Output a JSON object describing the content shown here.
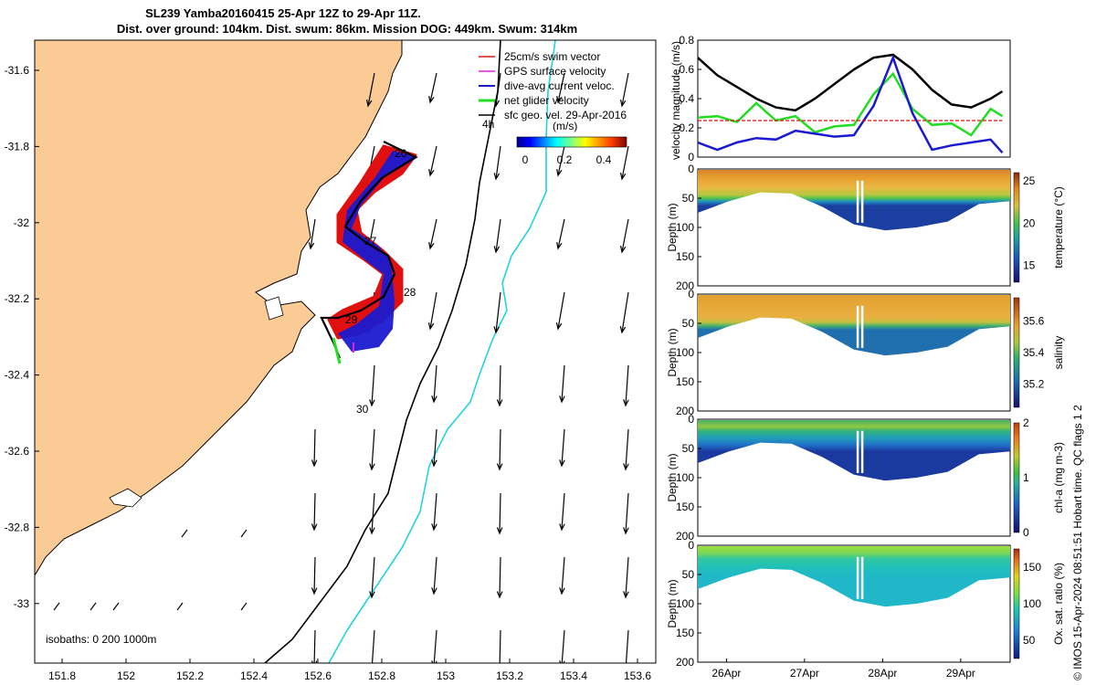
{
  "title": {
    "line1": "SL239 Yamba20160415 25-Apr 12Z to 29-Apr 11Z.",
    "line2": "Dist. over ground: 104km. Dist. swum: 86km. Mission DOG: 449km. Swum: 314km"
  },
  "colors": {
    "land": "#FACB95",
    "swim_vector": "#E01010",
    "gps_velocity": "#E020E0",
    "dive_avg_current": "#1A1AD0",
    "net_glider_velocity": "#22DD22",
    "sfc_geo_vel": "#000000",
    "isobath_200": "#000000",
    "isobath_1000": "#22D3DD"
  },
  "map": {
    "x_ticks": [
      "151.8",
      "152",
      "152.2",
      "152.4",
      "152.6",
      "152.8",
      "153",
      "153.2",
      "153.4",
      "153.6"
    ],
    "y_ticks": [
      "-31.6",
      "-31.8",
      "-32",
      "-32.2",
      "-32.4",
      "-32.6",
      "-32.8",
      "-33"
    ],
    "legend": [
      "25cm/s swim vector",
      "GPS surface velocity",
      "dive-avg current veloc.",
      "net glider velocity",
      "sfc geo. vel. 29-Apr-2016"
    ],
    "colorbar_label": "(m/s)",
    "colorbar_ticks": [
      "0",
      "0.2",
      "0.4"
    ],
    "isobaths_text": "isobaths: 0   200   1000m",
    "depth_label": "4h",
    "day_labels": [
      "26",
      "27",
      "28",
      "29",
      "30"
    ]
  },
  "chart_data": [
    {
      "type": "line",
      "ylabel": "velocity magnitude (m/s)",
      "ylim": [
        0,
        0.8
      ],
      "y_ticks": [
        "0",
        "0.2",
        "0.4",
        "0.6",
        "0.8"
      ],
      "x_ticks": [
        "26Apr",
        "27Apr",
        "28Apr",
        "29Apr"
      ],
      "x": [
        0,
        0.25,
        0.5,
        0.75,
        1,
        1.25,
        1.5,
        1.75,
        2,
        2.25,
        2.5,
        2.75,
        3,
        3.25,
        3.5,
        3.75,
        3.9
      ],
      "series": [
        {
          "name": "sfc geo. vel.",
          "color": "#000000",
          "values": [
            0.68,
            0.56,
            0.48,
            0.4,
            0.34,
            0.32,
            0.4,
            0.5,
            0.6,
            0.68,
            0.7,
            0.6,
            0.46,
            0.36,
            0.34,
            0.4,
            0.45
          ]
        },
        {
          "name": "net glider velocity",
          "color": "#22DD22",
          "values": [
            0.3,
            0.25,
            0.27,
            0.34,
            0.28,
            0.25,
            0.2,
            0.18,
            0.25,
            0.4,
            0.6,
            0.3,
            0.25,
            0.2,
            0.18,
            0.3,
            0.28
          ]
        },
        {
          "name": "dive-avg current veloc.",
          "color": "#1A1AD0",
          "values": [
            0.1,
            0.05,
            0.1,
            0.13,
            0.12,
            0.18,
            0.16,
            0.14,
            0.15,
            0.35,
            0.68,
            0.3,
            0.05,
            0.08,
            0.1,
            0.12,
            0.03
          ]
        },
        {
          "name": "25cm/s swim vector",
          "color": "#E01010",
          "values": [
            0.25,
            0.25,
            0.25,
            0.25,
            0.25,
            0.25,
            0.25,
            0.25,
            0.25,
            0.25,
            0.25,
            0.25,
            0.25,
            0.25,
            0.25,
            0.25,
            0.25
          ]
        }
      ]
    },
    {
      "type": "heatmap",
      "variable": "temperature",
      "ylabel": "Depth (m)",
      "cbar_label": "temperature (°C)",
      "y_ticks": [
        "0",
        "50",
        "100",
        "150",
        "200"
      ],
      "cbar_ticks": [
        "25",
        "20",
        "15"
      ],
      "cbar_range": [
        13,
        26
      ],
      "bottom_depth": [
        75,
        55,
        40,
        42,
        65,
        95,
        105,
        100,
        90,
        60,
        55
      ]
    },
    {
      "type": "heatmap",
      "variable": "salinity",
      "ylabel": "Depth (m)",
      "cbar_label": "salinity",
      "y_ticks": [
        "0",
        "50",
        "100",
        "150",
        "200"
      ],
      "cbar_ticks": [
        "35.6",
        "35.4",
        "35.2"
      ],
      "cbar_range": [
        35.05,
        35.75
      ],
      "bottom_depth": [
        75,
        55,
        40,
        42,
        65,
        95,
        105,
        100,
        90,
        60,
        55
      ]
    },
    {
      "type": "heatmap",
      "variable": "chl-a",
      "ylabel": "Depth (m)",
      "cbar_label": "chl-a (mg m-3)",
      "y_ticks": [
        "0",
        "50",
        "100",
        "150",
        "200"
      ],
      "cbar_ticks": [
        "2",
        "1",
        "0"
      ],
      "cbar_range": [
        0,
        2
      ],
      "bottom_depth": [
        75,
        55,
        40,
        42,
        65,
        95,
        105,
        100,
        90,
        60,
        55
      ]
    },
    {
      "type": "heatmap",
      "variable": "oxygen",
      "ylabel": "Depth (m)",
      "cbar_label": "Ox. sat. ratio (%)",
      "y_ticks": [
        "0",
        "50",
        "100",
        "150",
        "200"
      ],
      "cbar_ticks": [
        "150",
        "100",
        "50"
      ],
      "cbar_range": [
        25,
        175
      ],
      "x_ticks": [
        "26Apr",
        "27Apr",
        "28Apr",
        "29Apr"
      ],
      "bottom_depth": [
        75,
        55,
        40,
        42,
        65,
        95,
        105,
        100,
        90,
        60,
        55
      ]
    }
  ],
  "credit": "© IMOS 15-Apr-2024 08:51:51 Hobart time. QC flags 1  2"
}
